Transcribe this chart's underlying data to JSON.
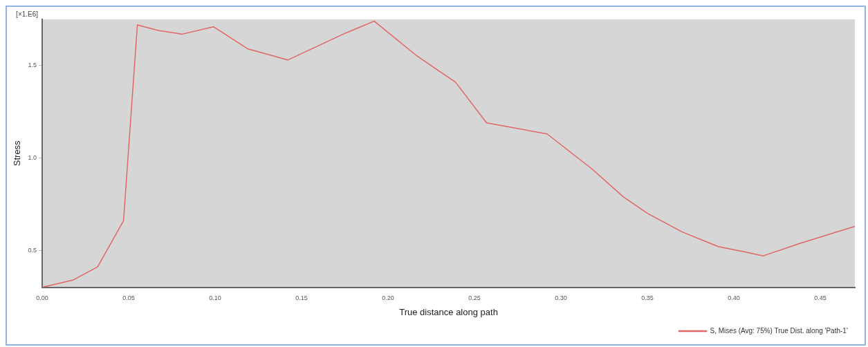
{
  "chart_data": {
    "type": "line",
    "xlabel": "True distance along path",
    "ylabel": "Stress",
    "annotations": [
      "[×1.E6]"
    ],
    "x": [
      0,
      0.018,
      0.032,
      0.047,
      0.055,
      0.067,
      0.081,
      0.099,
      0.119,
      0.142,
      0.174,
      0.192,
      0.217,
      0.239,
      0.257,
      0.292,
      0.318,
      0.336,
      0.35,
      0.37,
      0.391,
      0.407,
      0.417,
      0.439,
      0.47
    ],
    "series": [
      {
        "name": "S, Mises (Avg: 75%) True Dist. along 'Path-1'",
        "color": "#e06666",
        "values": [
          0.3,
          0.34,
          0.41,
          0.66,
          1.72,
          1.69,
          1.67,
          1.71,
          1.59,
          1.53,
          1.67,
          1.74,
          1.55,
          1.41,
          1.19,
          1.13,
          0.94,
          0.79,
          0.7,
          0.6,
          0.52,
          0.49,
          0.47,
          0.54,
          0.63
        ]
      }
    ],
    "xlim": [
      0,
      0.47
    ],
    "xticks": [
      {
        "value": 0,
        "label": "0.00"
      },
      {
        "value": 0.05,
        "label": "0.05"
      },
      {
        "value": 0.1,
        "label": "0.10"
      },
      {
        "value": 0.15,
        "label": "0.15"
      },
      {
        "value": 0.2,
        "label": "0.20"
      },
      {
        "value": 0.25,
        "label": "0.25"
      },
      {
        "value": 0.3,
        "label": "0.30"
      },
      {
        "value": 0.35,
        "label": "0.35"
      },
      {
        "value": 0.4,
        "label": "0.40"
      },
      {
        "value": 0.45,
        "label": "0.45"
      }
    ],
    "ylim": [
      0.3,
      1.75
    ],
    "yticks": [
      {
        "value": 0.5,
        "label": "0.5"
      },
      {
        "value": 1,
        "label": "1.0"
      },
      {
        "value": 1.5,
        "label": "1.5"
      }
    ],
    "grid": false,
    "legend": "bottom right",
    "marker": "none",
    "line_style": "solid"
  }
}
